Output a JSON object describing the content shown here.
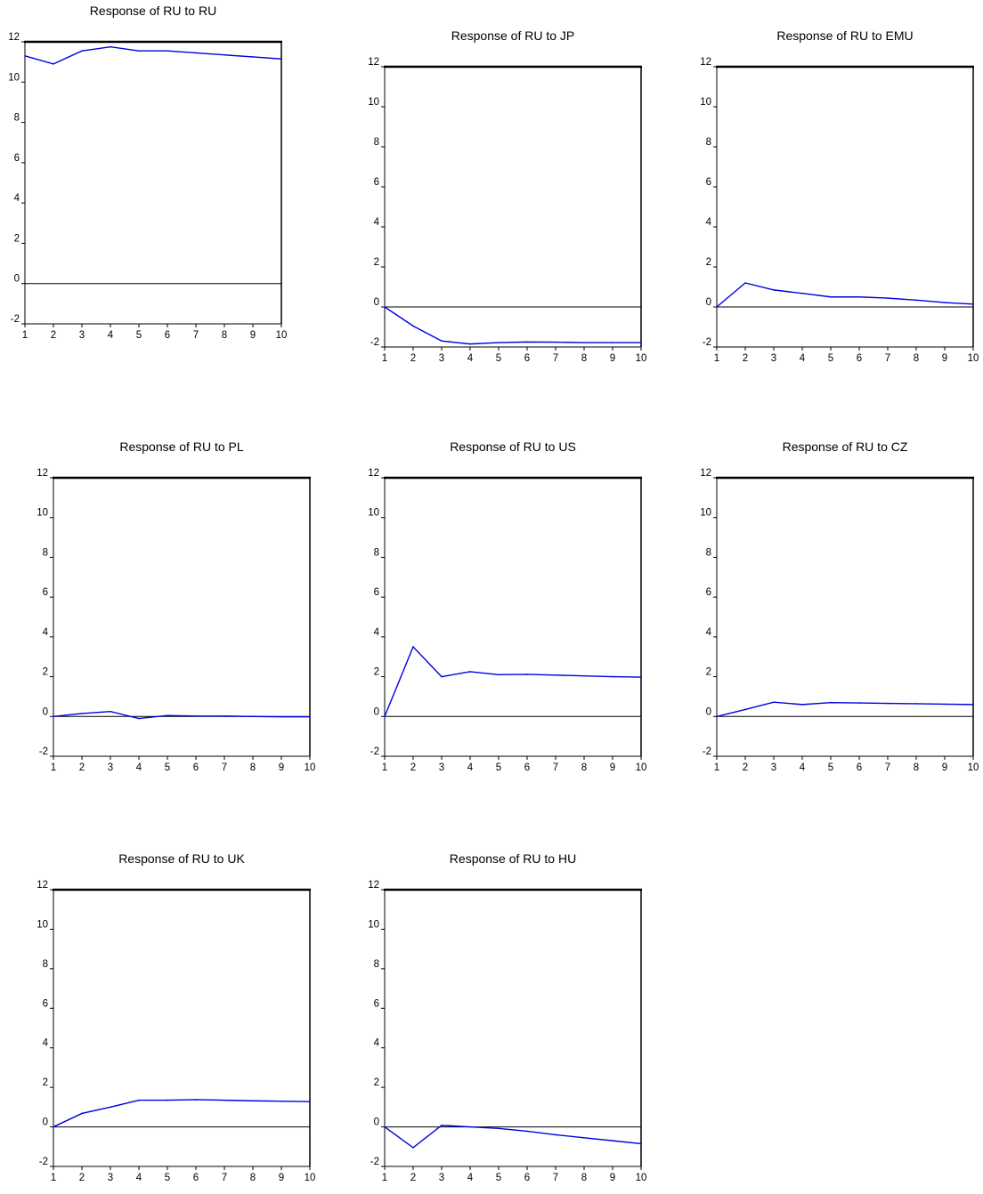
{
  "chart_data": [
    {
      "type": "line",
      "title": "Response of RU to RU",
      "x": [
        1,
        2,
        3,
        4,
        5,
        6,
        7,
        8,
        9,
        10
      ],
      "series": [
        {
          "values": [
            11.3,
            10.9,
            11.55,
            11.75,
            11.55,
            11.55,
            11.45,
            11.35,
            11.25,
            11.15
          ]
        }
      ],
      "ylim": [
        -2,
        12
      ],
      "yticks": [
        12,
        10,
        8,
        6,
        4,
        2,
        0,
        -2
      ],
      "xticks": [
        1,
        2,
        3,
        4,
        5,
        6,
        7,
        8,
        9,
        10
      ],
      "series_color": "#0000e0",
      "zero_line": true
    },
    {
      "type": "line",
      "title": "Response of RU to JP",
      "x": [
        1,
        2,
        3,
        4,
        5,
        6,
        7,
        8,
        9,
        10
      ],
      "series": [
        {
          "values": [
            0,
            -0.95,
            -1.7,
            -1.85,
            -1.78,
            -1.75,
            -1.76,
            -1.78,
            -1.78,
            -1.78
          ]
        }
      ],
      "ylim": [
        -2,
        12
      ],
      "yticks": [
        12,
        10,
        8,
        6,
        4,
        2,
        0,
        -2
      ],
      "xticks": [
        1,
        2,
        3,
        4,
        5,
        6,
        7,
        8,
        9,
        10
      ],
      "series_color": "#0000e0",
      "zero_line": true
    },
    {
      "type": "line",
      "title": "Response of RU to EMU",
      "x": [
        1,
        2,
        3,
        4,
        5,
        6,
        7,
        8,
        9,
        10
      ],
      "series": [
        {
          "values": [
            0,
            1.2,
            0.85,
            0.68,
            0.5,
            0.5,
            0.44,
            0.34,
            0.22,
            0.14
          ]
        }
      ],
      "ylim": [
        -2,
        12
      ],
      "yticks": [
        12,
        10,
        8,
        6,
        4,
        2,
        0,
        -2
      ],
      "xticks": [
        1,
        2,
        3,
        4,
        5,
        6,
        7,
        8,
        9,
        10
      ],
      "series_color": "#0000e0",
      "zero_line": true
    },
    {
      "type": "line",
      "title": "Response of RU to PL",
      "x": [
        1,
        2,
        3,
        4,
        5,
        6,
        7,
        8,
        9,
        10
      ],
      "series": [
        {
          "values": [
            0,
            0.15,
            0.25,
            -0.1,
            0.05,
            0.02,
            0.02,
            0.0,
            -0.02,
            -0.02
          ]
        }
      ],
      "ylim": [
        -2,
        12
      ],
      "yticks": [
        12,
        10,
        8,
        6,
        4,
        2,
        0,
        -2
      ],
      "xticks": [
        1,
        2,
        3,
        4,
        5,
        6,
        7,
        8,
        9,
        10
      ],
      "series_color": "#0000e0",
      "zero_line": true
    },
    {
      "type": "line",
      "title": "Response of RU to US",
      "x": [
        1,
        2,
        3,
        4,
        5,
        6,
        7,
        8,
        9,
        10
      ],
      "series": [
        {
          "values": [
            0,
            3.5,
            2.0,
            2.25,
            2.1,
            2.12,
            2.08,
            2.04,
            2.0,
            1.98
          ]
        }
      ],
      "ylim": [
        -2,
        12
      ],
      "yticks": [
        12,
        10,
        8,
        6,
        4,
        2,
        0,
        -2
      ],
      "xticks": [
        1,
        2,
        3,
        4,
        5,
        6,
        7,
        8,
        9,
        10
      ],
      "series_color": "#0000e0",
      "zero_line": true
    },
    {
      "type": "line",
      "title": "Response of RU to CZ",
      "x": [
        1,
        2,
        3,
        4,
        5,
        6,
        7,
        8,
        9,
        10
      ],
      "series": [
        {
          "values": [
            0,
            0.35,
            0.72,
            0.6,
            0.7,
            0.68,
            0.66,
            0.64,
            0.62,
            0.6
          ]
        }
      ],
      "ylim": [
        -2,
        12
      ],
      "yticks": [
        12,
        10,
        8,
        6,
        4,
        2,
        0,
        -2
      ],
      "xticks": [
        1,
        2,
        3,
        4,
        5,
        6,
        7,
        8,
        9,
        10
      ],
      "series_color": "#0000e0",
      "zero_line": true
    },
    {
      "type": "line",
      "title": "Response of RU to UK",
      "x": [
        1,
        2,
        3,
        4,
        5,
        6,
        7,
        8,
        9,
        10
      ],
      "series": [
        {
          "values": [
            0,
            0.68,
            1.0,
            1.35,
            1.35,
            1.38,
            1.35,
            1.32,
            1.3,
            1.28
          ]
        }
      ],
      "ylim": [
        -2,
        12
      ],
      "yticks": [
        12,
        10,
        8,
        6,
        4,
        2,
        0,
        -2
      ],
      "xticks": [
        1,
        2,
        3,
        4,
        5,
        6,
        7,
        8,
        9,
        10
      ],
      "series_color": "#0000e0",
      "zero_line": true
    },
    {
      "type": "line",
      "title": "Response of RU to HU",
      "x": [
        1,
        2,
        3,
        4,
        5,
        6,
        7,
        8,
        9,
        10
      ],
      "series": [
        {
          "values": [
            0,
            -1.05,
            0.08,
            0.0,
            -0.08,
            -0.22,
            -0.4,
            -0.55,
            -0.7,
            -0.85
          ]
        }
      ],
      "ylim": [
        -2,
        12
      ],
      "yticks": [
        12,
        10,
        8,
        6,
        4,
        2,
        0,
        -2
      ],
      "xticks": [
        1,
        2,
        3,
        4,
        5,
        6,
        7,
        8,
        9,
        10
      ],
      "series_color": "#0000e0",
      "zero_line": true
    }
  ]
}
